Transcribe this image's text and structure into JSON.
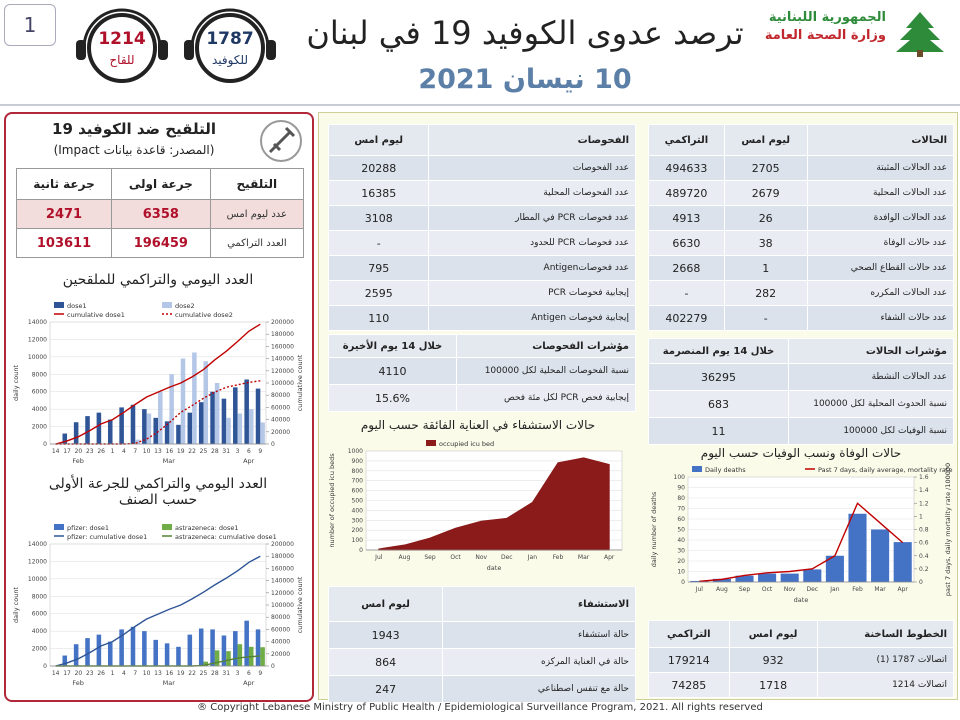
{
  "header": {
    "badge": "1",
    "hotline_vaccine": {
      "number": "1214",
      "label": "للقاح"
    },
    "hotline_covid": {
      "number": "1787",
      "label": "للكوفيد"
    },
    "title": "ترصد عدوى الكوفيد 19 في لبنان",
    "date": "10 نيسان 2021",
    "ministry_state": "الجمهورية اللبنانية",
    "ministry_name": "وزارة الصحة العامة"
  },
  "vaccination": {
    "title": "التلقيح ضد الكوفيد 19",
    "source": "(المصدر: قاعدة بيانات Impact)",
    "table": {
      "header": [
        "التلقيح",
        "جرعة اولى",
        "جرعة ثانية"
      ],
      "rows": [
        [
          "عدد ليوم امس",
          "6358",
          "2471"
        ],
        [
          "العدد التراكمي",
          "196459",
          "103611"
        ]
      ]
    }
  },
  "tests": {
    "header": [
      "الفحوصات",
      "ليوم امس"
    ],
    "rows": [
      [
        "عدد الفحوصات",
        "20288"
      ],
      [
        "عدد الفحوصات المحلية",
        "16385"
      ],
      [
        "عدد فحوصات PCR في المطار",
        "3108"
      ],
      [
        "عدد فحوصات PCR للحدود",
        "-"
      ],
      [
        "عدد فحوصاتAntigen",
        "795"
      ],
      [
        "إيجابية فحوصات PCR",
        "2595"
      ],
      [
        "إيجابية فحوصات Antigen",
        "110"
      ]
    ],
    "indicators": {
      "header": [
        "مؤشرات الفحوصات",
        "خلال 14 يوم الأخيرة"
      ],
      "rows": [
        [
          "نسبة الفحوصات المحلية لكل 100000",
          "4110"
        ],
        [
          "إيجابية فحص PCR لكل مئة فحص",
          "15.6%"
        ]
      ]
    }
  },
  "cases": {
    "header": [
      "الحالات",
      "ليوم امس",
      "التراكمي"
    ],
    "rows": [
      [
        "عدد الحالات المثبتة",
        "2705",
        "494633"
      ],
      [
        "عدد الحالات المحلية",
        "2679",
        "489720"
      ],
      [
        "عدد الحالات الوافدة",
        "26",
        "4913"
      ],
      [
        "عدد حالات الوفاة",
        "38",
        "6630"
      ],
      [
        "عدد حالات القطاع الصحي",
        "1",
        "2668"
      ],
      [
        "عدد الحالات المكرره",
        "282",
        "-"
      ],
      [
        "عدد حالات الشفاء",
        "-",
        "402279"
      ]
    ],
    "indicators": {
      "header": [
        "مؤشرات الحالات",
        "خلال 14 يوم المنصرمة"
      ],
      "rows": [
        [
          "عدد الحالات النشطة",
          "36295"
        ],
        [
          "نسبة الحدوث المحلية لكل 100000",
          "683"
        ],
        [
          "نسبة الوفيات لكل 100000",
          "11"
        ]
      ]
    }
  },
  "hospital": {
    "header": [
      "الاستشفاء",
      "ليوم امس"
    ],
    "rows": [
      [
        "حالة استشفاء",
        "1943"
      ],
      [
        "حالة في العناية المركزه",
        "864"
      ],
      [
        "حالة مع تنفس اصطناعي",
        "247"
      ]
    ]
  },
  "hotlines": {
    "header": [
      "الخطوط الساخنة",
      "ليوم امس",
      "التراكمي"
    ],
    "rows": [
      [
        "اتصالات 1787 (1)",
        "932",
        "179214"
      ],
      [
        "اتصالات 1214",
        "1718",
        "74285"
      ]
    ]
  },
  "charts": {
    "vacc_daily": {
      "type": "bar",
      "title": "العدد اليومي والتراكمي للملقحين",
      "ylabel": "daily count",
      "y2label": "cumulative count",
      "categories": [
        "14",
        "17",
        "20",
        "23",
        "26",
        "1",
        "4",
        "7",
        "10",
        "13",
        "16",
        "19",
        "22",
        "25",
        "28",
        "31",
        "3",
        "6",
        "9"
      ],
      "months": [
        "Feb",
        "Mar",
        "Apr"
      ],
      "ylim": [
        0,
        14000
      ],
      "yticks": [
        0,
        2000,
        4000,
        6000,
        8000,
        10000,
        12000,
        14000
      ],
      "y2lim": [
        0,
        200000
      ],
      "y2ticks": [
        0,
        20000,
        40000,
        60000,
        80000,
        100000,
        120000,
        140000,
        160000,
        180000,
        200000
      ],
      "series": [
        {
          "name": "dose1",
          "type": "bar",
          "color": "#2f5597",
          "values": [
            0,
            1200,
            2500,
            3200,
            3600,
            2800,
            4200,
            4500,
            4000,
            3000,
            2600,
            2200,
            3600,
            4800,
            6000,
            5200,
            6500,
            7400,
            6358
          ]
        },
        {
          "name": "dose2",
          "type": "bar",
          "color": "#b4c7e7",
          "values": [
            0,
            0,
            0,
            0,
            0,
            0,
            0,
            500,
            3500,
            6000,
            8000,
            9800,
            10500,
            9500,
            7000,
            3000,
            3500,
            4000,
            2471
          ]
        },
        {
          "name": "cumulative dose1",
          "type": "line",
          "axis": "y2",
          "color": "#c00000",
          "values": [
            0,
            5000,
            12000,
            22000,
            33000,
            40000,
            52000,
            65000,
            77000,
            85000,
            93000,
            100000,
            110000,
            122000,
            138000,
            152000,
            168000,
            185000,
            196459
          ]
        },
        {
          "name": "cumulative dose2",
          "type": "line",
          "axis": "y2",
          "dashed": true,
          "color": "#c00000",
          "values": [
            0,
            0,
            0,
            0,
            0,
            0,
            0,
            1000,
            8000,
            20000,
            35000,
            52000,
            63000,
            75000,
            85000,
            93000,
            97000,
            101000,
            103611
          ]
        }
      ]
    },
    "vacc_brand": {
      "type": "bar",
      "title": "العدد اليومي والتراكمي للجرعة الأولى حسب الصنف",
      "ylabel": "daily count",
      "y2label": "cumulative count",
      "categories": [
        "14",
        "17",
        "20",
        "23",
        "26",
        "1",
        "4",
        "7",
        "10",
        "13",
        "16",
        "19",
        "22",
        "25",
        "28",
        "31",
        "3",
        "6",
        "9"
      ],
      "months": [
        "Feb",
        "Mar",
        "Apr"
      ],
      "ylim": [
        0,
        14000
      ],
      "yticks": [
        0,
        2000,
        4000,
        6000,
        8000,
        10000,
        12000,
        14000
      ],
      "y2lim": [
        0,
        200000
      ],
      "y2ticks": [
        0,
        20000,
        40000,
        60000,
        80000,
        100000,
        120000,
        140000,
        160000,
        180000,
        200000
      ],
      "series": [
        {
          "name": "pfizer: dose1",
          "type": "bar",
          "color": "#4472c4",
          "values": [
            0,
            1200,
            2500,
            3200,
            3600,
            2800,
            4200,
            4500,
            4000,
            3000,
            2600,
            2200,
            3600,
            4300,
            4200,
            3500,
            4000,
            5200,
            4200
          ]
        },
        {
          "name": "astrazeneca: dose1",
          "type": "bar",
          "color": "#70ad47",
          "values": [
            0,
            0,
            0,
            0,
            0,
            0,
            0,
            0,
            0,
            0,
            0,
            0,
            0,
            500,
            1800,
            1700,
            2500,
            2200,
            2158
          ]
        },
        {
          "name": "pfizer: cumulative dose1",
          "type": "line",
          "axis": "y2",
          "color": "#2f5597",
          "values": [
            0,
            5000,
            12000,
            22000,
            33000,
            40000,
            52000,
            65000,
            77000,
            85000,
            93000,
            100000,
            110000,
            121000,
            133000,
            144000,
            156000,
            170000,
            180000
          ]
        },
        {
          "name": "astrazeneca: cumulative dose1",
          "type": "line",
          "axis": "y2",
          "color": "#548235",
          "values": [
            0,
            0,
            0,
            0,
            0,
            0,
            0,
            0,
            0,
            0,
            0,
            0,
            0,
            1000,
            5000,
            9000,
            13000,
            15000,
            16459
          ]
        }
      ]
    },
    "icu": {
      "type": "area",
      "title": "حالات الاستشفاء في العناية الفائقة حسب اليوم",
      "ylabel": "number of occupied icu beds",
      "xlabel": "date",
      "categories": [
        "Jul",
        "Aug",
        "Sep",
        "Oct",
        "Nov",
        "Dec",
        "Jan",
        "Feb",
        "Mar",
        "Apr"
      ],
      "ylim": [
        0,
        1000
      ],
      "yticks": [
        0,
        100,
        200,
        300,
        400,
        500,
        600,
        700,
        800,
        900,
        1000
      ],
      "series": [
        {
          "name": "occupied icu bed",
          "type": "area",
          "color": "#8b1a1a",
          "values": [
            10,
            50,
            120,
            220,
            290,
            320,
            480,
            880,
            930,
            864
          ]
        }
      ]
    },
    "deaths": {
      "type": "bar",
      "title": "حالات الوفاة ونسب الوفيات حسب اليوم",
      "ylabel": "daily number of deaths",
      "y2label": "past 7 days, daily mortality rate /100000",
      "xlabel": "date",
      "categories": [
        "Jul",
        "Aug",
        "Sep",
        "Oct",
        "Nov",
        "Dec",
        "Jan",
        "Feb",
        "Mar",
        "Apr"
      ],
      "ylim": [
        0,
        100
      ],
      "yticks": [
        0,
        10,
        20,
        30,
        40,
        50,
        60,
        70,
        80,
        90,
        100
      ],
      "y2lim": [
        0,
        1.6
      ],
      "y2ticks": [
        0,
        0.2,
        0.4,
        0.6,
        0.8,
        1,
        1.2,
        1.4,
        1.6
      ],
      "series": [
        {
          "name": "Daily deaths",
          "type": "bar",
          "color": "#4472c4",
          "values": [
            1,
            3,
            6,
            8,
            8,
            12,
            25,
            65,
            50,
            38
          ]
        },
        {
          "name": "Past 7 days, daily average, mortality rate",
          "type": "line",
          "axis": "y2",
          "color": "#c00000",
          "values": [
            0.01,
            0.04,
            0.1,
            0.14,
            0.16,
            0.2,
            0.4,
            1.2,
            0.9,
            0.6
          ]
        }
      ]
    }
  },
  "footer": "® Copyright Lebanese Ministry of Public Health / Epidemiological Surveillance Program, 2021. All rights reserved"
}
